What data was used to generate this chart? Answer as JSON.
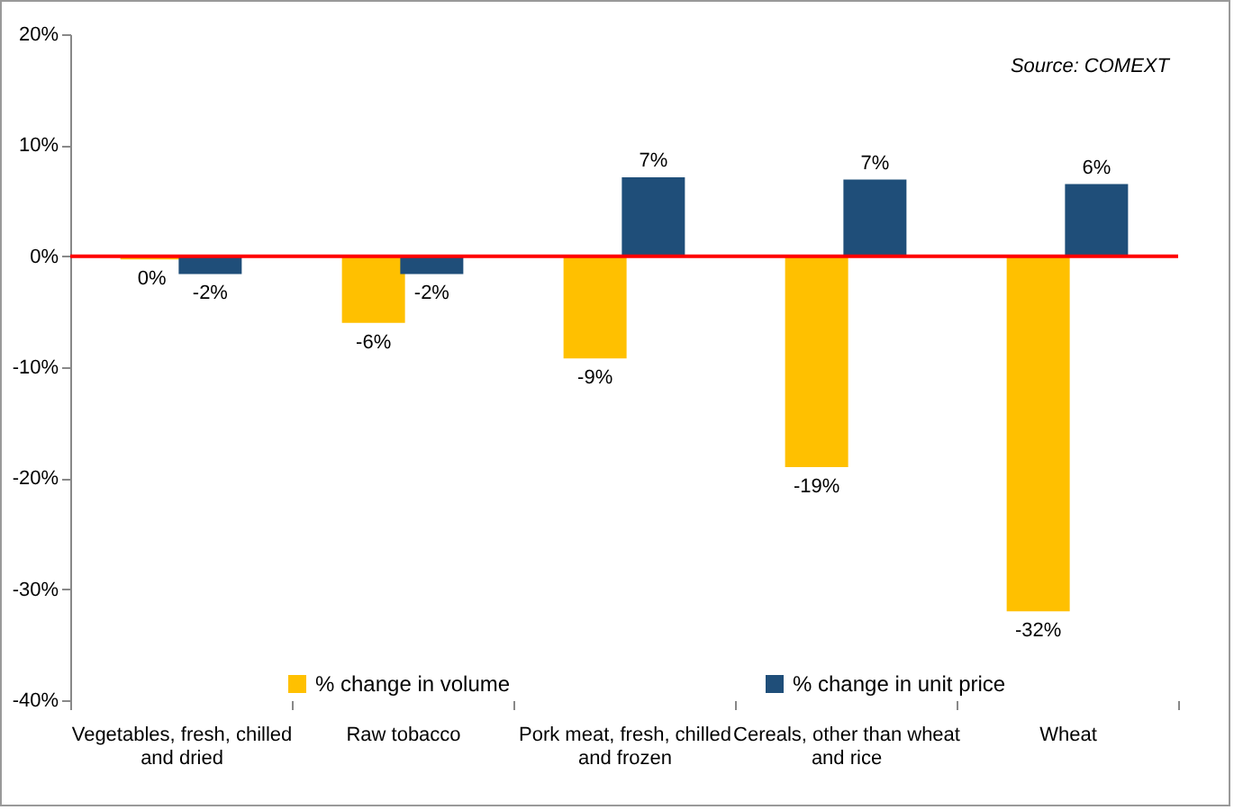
{
  "chart_data": {
    "type": "bar",
    "categories": [
      "Vegetables, fresh, chilled and dried",
      "Raw tobacco",
      "Pork meat, fresh, chilled and frozen",
      "Cereals, other than wheat and rice",
      "Wheat"
    ],
    "series": [
      {
        "name": "% change in volume",
        "color": "#ffc000",
        "values": [
          -0.3,
          -6.0,
          -9.2,
          -19.0,
          -32.0
        ],
        "value_labels": [
          "0%",
          "-6%",
          "-9%",
          "-19%",
          "-32%"
        ]
      },
      {
        "name": "% change in unit price",
        "color": "#1f4e79",
        "values": [
          -1.6,
          -1.6,
          7.1,
          6.9,
          6.5
        ],
        "value_labels": [
          "-2%",
          "-2%",
          "7%",
          "7%",
          "6%"
        ]
      }
    ],
    "ylim": [
      -40,
      20
    ],
    "yticks": [
      {
        "value": -40,
        "label": "-40%"
      },
      {
        "value": -30,
        "label": "-30%"
      },
      {
        "value": -20,
        "label": "-20%"
      },
      {
        "value": -10,
        "label": "-10%"
      },
      {
        "value": 0,
        "label": "0%"
      },
      {
        "value": 10,
        "label": "10%"
      },
      {
        "value": 20,
        "label": "20%"
      }
    ],
    "ref_lines": [
      {
        "axis": "y",
        "value": 0,
        "color": "#ff0000"
      }
    ],
    "legend": "bottom",
    "grid": false,
    "annotations": [
      "Source: COMEXT"
    ]
  }
}
